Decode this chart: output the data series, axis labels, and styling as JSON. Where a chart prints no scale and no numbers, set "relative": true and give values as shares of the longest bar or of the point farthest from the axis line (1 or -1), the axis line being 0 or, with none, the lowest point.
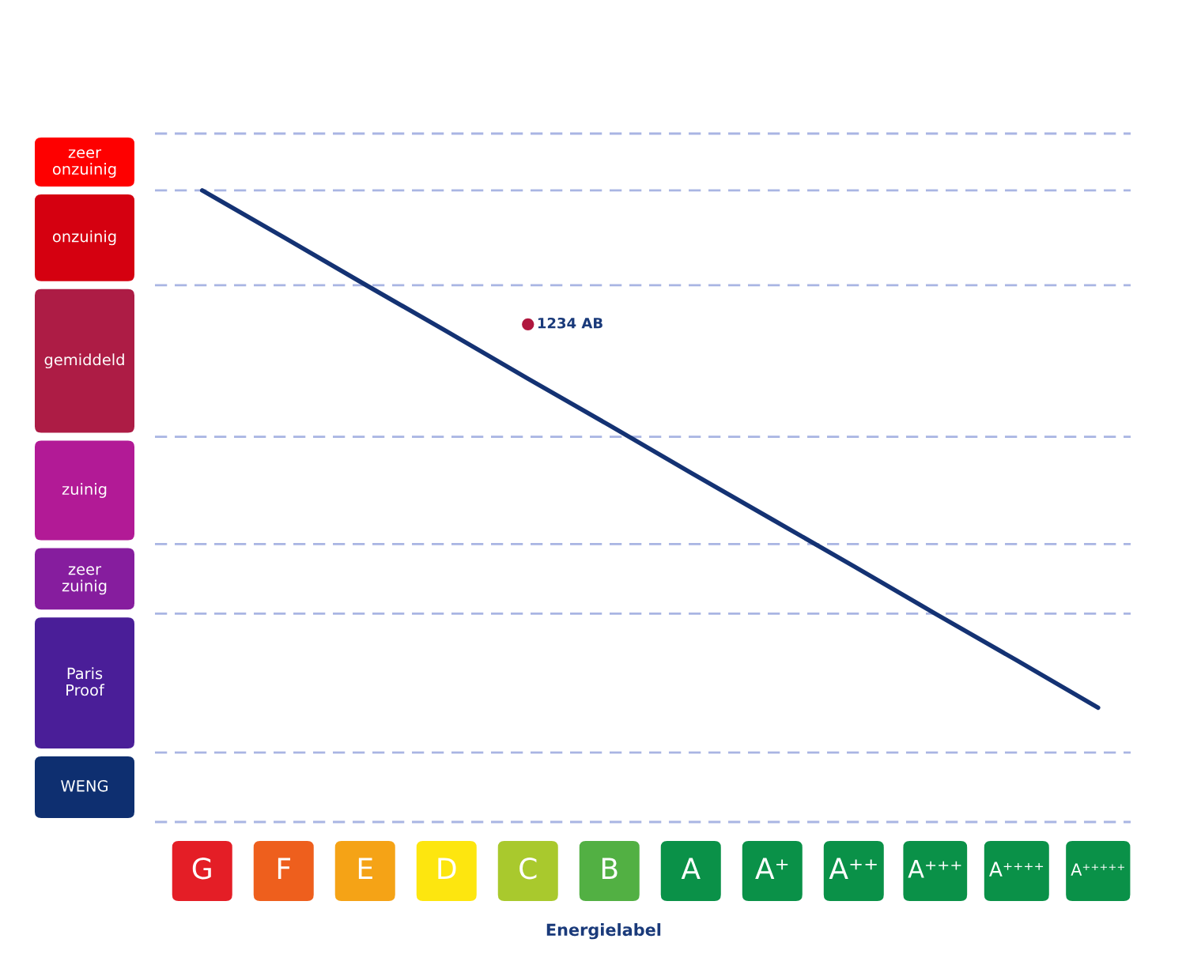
{
  "chart_data": {
    "type": "line",
    "xlabel": "Energielabel",
    "relative": true,
    "grid": false,
    "legend": false,
    "marker": "none",
    "line_style": "solid",
    "categories": [
      "G",
      "F",
      "E",
      "D",
      "C",
      "B",
      "A",
      "A⁺",
      "A⁺⁺",
      "A⁺⁺⁺",
      "A⁺⁺⁺⁺",
      "A⁺⁺⁺⁺⁺"
    ],
    "series": [
      {
        "color": "#143273",
        "values": [
          1.0,
          0.926,
          0.851,
          0.777,
          0.702,
          0.628,
          0.553,
          0.479,
          0.405,
          0.33,
          0.256,
          0.181
        ]
      },
      {
        "type": "scatter",
        "name": "1234 AB",
        "color": "#b0173e",
        "marker": "circle",
        "values": [
          null,
          null,
          null,
          null,
          0.788,
          null,
          null,
          null,
          null,
          null,
          null,
          null
        ]
      }
    ],
    "ref_lines": [
      {
        "axis": "y",
        "value": 1.09,
        "line_style": "dashed",
        "color": "#a9b5e3"
      },
      {
        "axis": "y",
        "value": 1.0,
        "line_style": "dashed",
        "color": "#a9b5e3"
      },
      {
        "axis": "y",
        "value": 0.85,
        "line_style": "dashed",
        "color": "#a9b5e3"
      },
      {
        "axis": "y",
        "value": 0.61,
        "line_style": "dashed",
        "color": "#a9b5e3"
      },
      {
        "axis": "y",
        "value": 0.44,
        "line_style": "dashed",
        "color": "#a9b5e3"
      },
      {
        "axis": "y",
        "value": 0.33,
        "line_style": "dashed",
        "color": "#a9b5e3"
      },
      {
        "axis": "y",
        "value": 0.11,
        "line_style": "dashed",
        "color": "#a9b5e3"
      },
      {
        "axis": "y",
        "value": 0,
        "line_style": "dashed",
        "color": "#a9b5e3"
      }
    ],
    "annotations": [
      "zeer onzuinig",
      "onzuinig",
      "gemiddeld",
      "zuinig",
      "zeer zuinig",
      "Paris Proof",
      "WENG"
    ]
  }
}
